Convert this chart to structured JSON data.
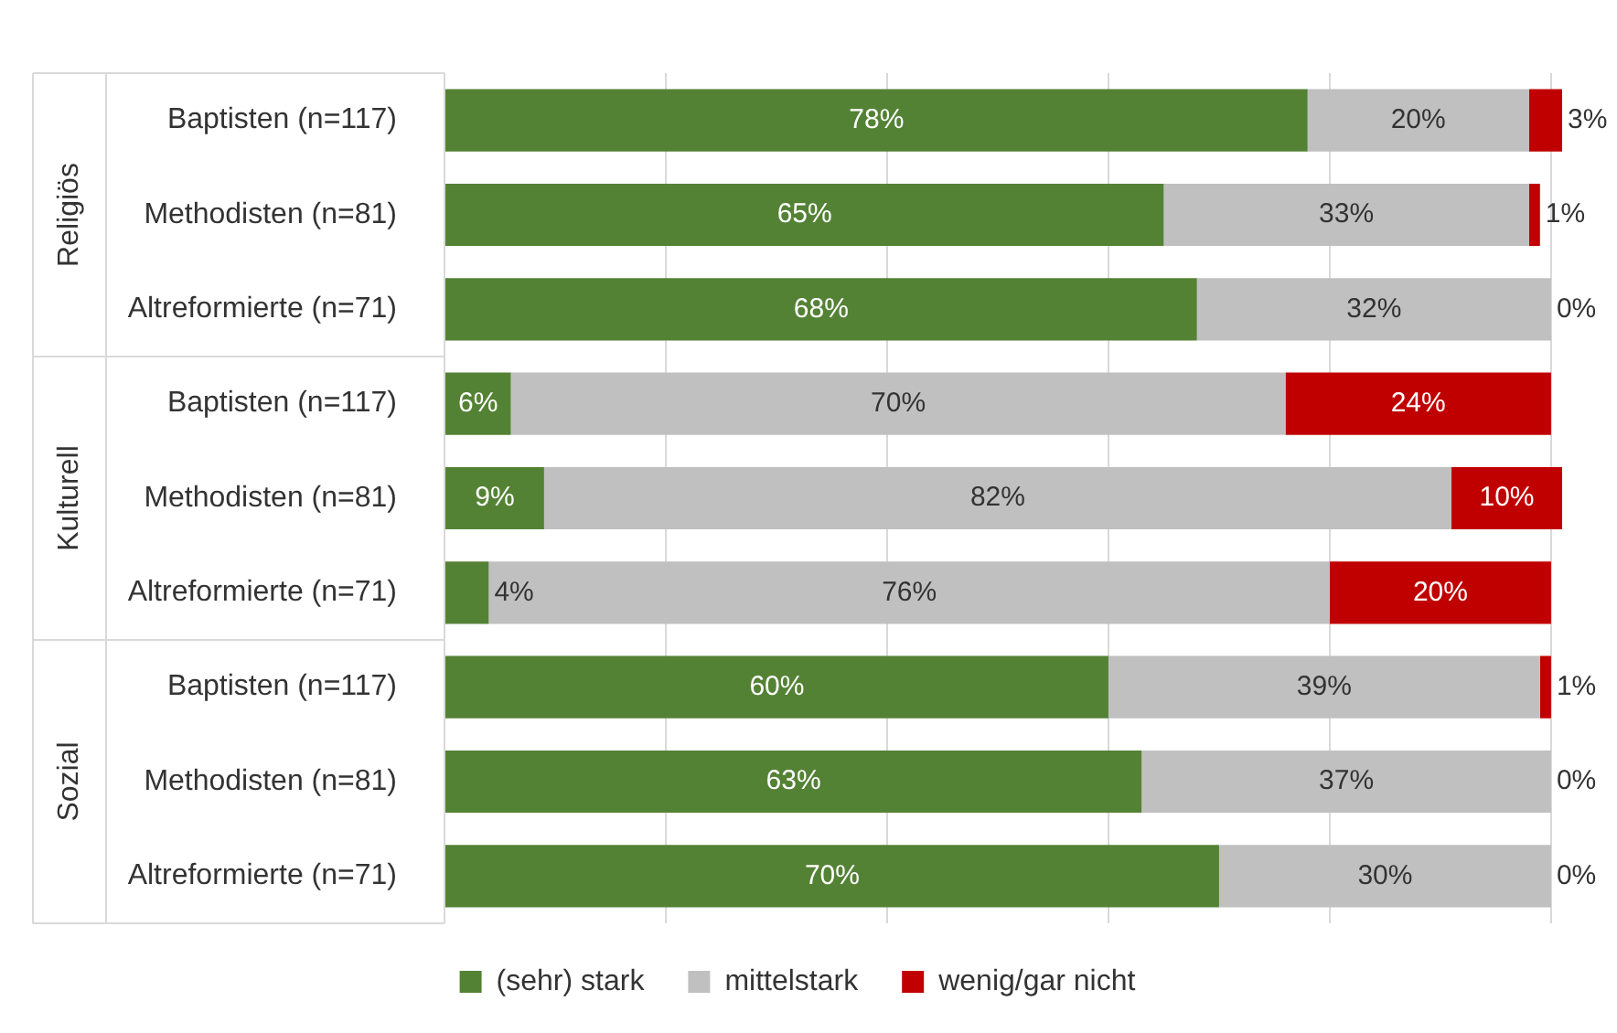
{
  "chart_data": {
    "type": "bar",
    "orientation": "horizontal",
    "stacked": true,
    "legend": "bottom",
    "grid": "x",
    "tick_labels": "y",
    "categories": [
      "Baptisten (n=117)",
      "Methodisten (n=81)",
      "Altreformierte (n=71)",
      "Baptisten (n=117)",
      "Methodisten (n=81)",
      "Altreformierte (n=71)",
      "Baptisten (n=117)",
      "Methodisten (n=81)",
      "Altreformierte (n=71)"
    ],
    "annotations": [
      "Religiös",
      "Kulturell",
      "Sozial"
    ],
    "xlim": [
      0,
      101
    ],
    "xticks": [
      {
        "value": 0,
        "label": null
      },
      {
        "value": 20,
        "label": null
      },
      {
        "value": 40,
        "label": null
      },
      {
        "value": 60,
        "label": null
      },
      {
        "value": 80,
        "label": null
      },
      {
        "value": 100,
        "label": null
      }
    ],
    "series": [
      {
        "name": "(sehr) stark",
        "color": "#548235",
        "values": [
          78,
          65,
          68,
          6,
          9,
          4,
          60,
          63,
          70
        ],
        "value_labels": [
          "78%",
          "65%",
          "68%",
          "6%",
          "9%",
          "4%",
          "60%",
          "63%",
          "70%"
        ]
      },
      {
        "name": "mittelstark",
        "color": "#c0c0c0",
        "values": [
          20,
          33,
          32,
          70,
          82,
          76,
          39,
          37,
          30
        ],
        "value_labels": [
          "20%",
          "33%",
          "32%",
          "70%",
          "82%",
          "76%",
          "39%",
          "37%",
          "30%"
        ]
      },
      {
        "name": "wenig/gar nicht",
        "color": "#c00000",
        "values": [
          3,
          1,
          0,
          24,
          10,
          20,
          1,
          0,
          0
        ],
        "value_labels": [
          "3%",
          "1%",
          "0%",
          "24%",
          "10%",
          "20%",
          "1%",
          "0%",
          "0%"
        ]
      }
    ]
  }
}
